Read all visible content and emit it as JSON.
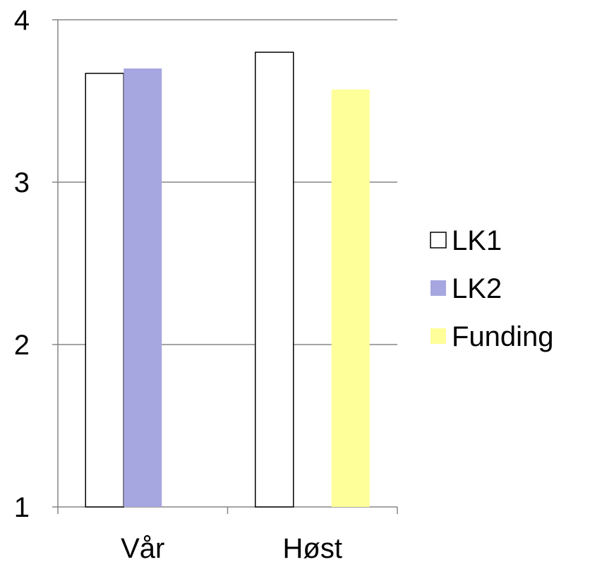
{
  "chart_data": {
    "type": "bar",
    "title": "",
    "xlabel": "",
    "ylabel": "",
    "categories": [
      "Vår",
      "Høst"
    ],
    "ylim": [
      1,
      4
    ],
    "yticks": [
      "1",
      "2",
      "3",
      "4"
    ],
    "grid": true,
    "legend_position": "right",
    "series": [
      {
        "name": "LK1",
        "values": [
          3.67,
          3.8
        ],
        "color": "#ffffff",
        "stroke": "#000000"
      },
      {
        "name": "LK2",
        "values": [
          3.7,
          null
        ],
        "color": "#a6a6e0",
        "stroke": "none"
      },
      {
        "name": "Funding",
        "values": [
          null,
          3.57
        ],
        "color": "#ffff99",
        "stroke": "none"
      }
    ]
  }
}
